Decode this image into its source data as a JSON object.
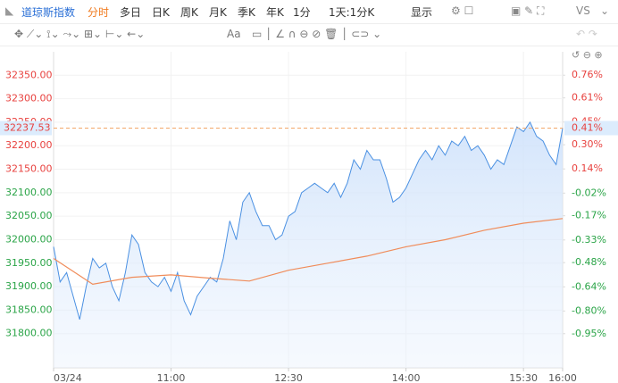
{
  "toolbar": {
    "symbol": "道琼斯指数",
    "tabs": [
      "分时",
      "多日",
      "日K",
      "周K",
      "月K",
      "季K",
      "年K",
      "1分",
      "1天:1分K"
    ],
    "display": "显示",
    "compare": "VS",
    "text_tool": "Aa"
  },
  "chart_data": {
    "type": "line",
    "last_price": 32237.53,
    "last_change": {
      "value": 0.41,
      "label": "0.41%"
    },
    "series": [
      {
        "name": "price",
        "color": "#4a90e2",
        "x": [
          0,
          5,
          10,
          15,
          20,
          25,
          30,
          35,
          40,
          45,
          50,
          55,
          60,
          65,
          70,
          75,
          80,
          85,
          90,
          95,
          100,
          105,
          110,
          115,
          120,
          125,
          130,
          135,
          140,
          145,
          150,
          155,
          160,
          165,
          170,
          175,
          180,
          185,
          190,
          195,
          200,
          205,
          210,
          215,
          220,
          225,
          230,
          235,
          240,
          245,
          250,
          255,
          260,
          265,
          270,
          275,
          280,
          285,
          290,
          295,
          300,
          305,
          310,
          315,
          320,
          325,
          330,
          335,
          340,
          345,
          350,
          355,
          360,
          365,
          370,
          375,
          380,
          385,
          390
        ],
        "values": [
          31985,
          31910,
          31930,
          31880,
          31830,
          31900,
          31960,
          31940,
          31950,
          31900,
          31870,
          31930,
          32010,
          31990,
          31930,
          31910,
          31900,
          31920,
          31890,
          31930,
          31870,
          31840,
          31880,
          31900,
          31920,
          31910,
          31960,
          32040,
          32000,
          32080,
          32100,
          32060,
          32030,
          32030,
          32000,
          32010,
          32050,
          32060,
          32100,
          32110,
          32120,
          32110,
          32100,
          32120,
          32090,
          32120,
          32170,
          32150,
          32190,
          32170,
          32170,
          32130,
          32080,
          32090,
          32110,
          32140,
          32170,
          32190,
          32170,
          32200,
          32180,
          32210,
          32200,
          32220,
          32190,
          32200,
          32180,
          32150,
          32170,
          32160,
          32200,
          32240,
          32230,
          32250,
          32220,
          32210,
          32180,
          32160,
          32237.53
        ]
      },
      {
        "name": "average",
        "color": "#f08c5a",
        "x": [
          0,
          30,
          60,
          90,
          120,
          150,
          180,
          210,
          240,
          270,
          300,
          330,
          360,
          390
        ],
        "values": [
          31960,
          31905,
          31920,
          31925,
          31918,
          31912,
          31935,
          31950,
          31965,
          31985,
          32000,
          32020,
          32035,
          32045
        ]
      }
    ],
    "xlim": [
      0,
      390
    ],
    "xticks": [
      {
        "value": 0,
        "label": "03/24"
      },
      {
        "value": 90,
        "label": "11:00"
      },
      {
        "value": 180,
        "label": "12:30"
      },
      {
        "value": 270,
        "label": "14:00"
      },
      {
        "value": 360,
        "label": "15:30"
      },
      {
        "value": 390,
        "label": "16:00"
      }
    ],
    "ylim": [
      31750,
      32400
    ],
    "yticks": [
      {
        "value": 32350,
        "label": "32350.00"
      },
      {
        "value": 32300,
        "label": "32300.00"
      },
      {
        "value": 32250,
        "label": "32250.00"
      },
      {
        "value": 32200,
        "label": "32200.00"
      },
      {
        "value": 32150,
        "label": "32150.00"
      },
      {
        "value": 32100,
        "label": "32100.00"
      },
      {
        "value": 32050,
        "label": "32050.00"
      },
      {
        "value": 32000,
        "label": "32000.00"
      },
      {
        "value": 31950,
        "label": "31950.00"
      },
      {
        "value": 31900,
        "label": "31900.00"
      },
      {
        "value": 31850,
        "label": "31850.00"
      },
      {
        "value": 31800,
        "label": "31800.00"
      }
    ],
    "y2lim": [
      -1.105,
      0.915
    ],
    "y2ticks": [
      {
        "value": 0.76,
        "label": "0.76%"
      },
      {
        "value": 0.61,
        "label": "0.61%"
      },
      {
        "value": 0.45,
        "label": "0.45%"
      },
      {
        "value": 0.3,
        "label": "0.30%"
      },
      {
        "value": 0.14,
        "label": "0.14%"
      },
      {
        "value": -0.02,
        "label": "-0.02%"
      },
      {
        "value": -0.17,
        "label": "-0.17%"
      },
      {
        "value": -0.33,
        "label": "-0.33%"
      },
      {
        "value": -0.48,
        "label": "-0.48%"
      },
      {
        "value": -0.64,
        "label": "-0.64%"
      },
      {
        "value": -0.8,
        "label": "-0.80%"
      },
      {
        "value": -0.95,
        "label": "-0.95%"
      }
    ],
    "grid": true
  }
}
